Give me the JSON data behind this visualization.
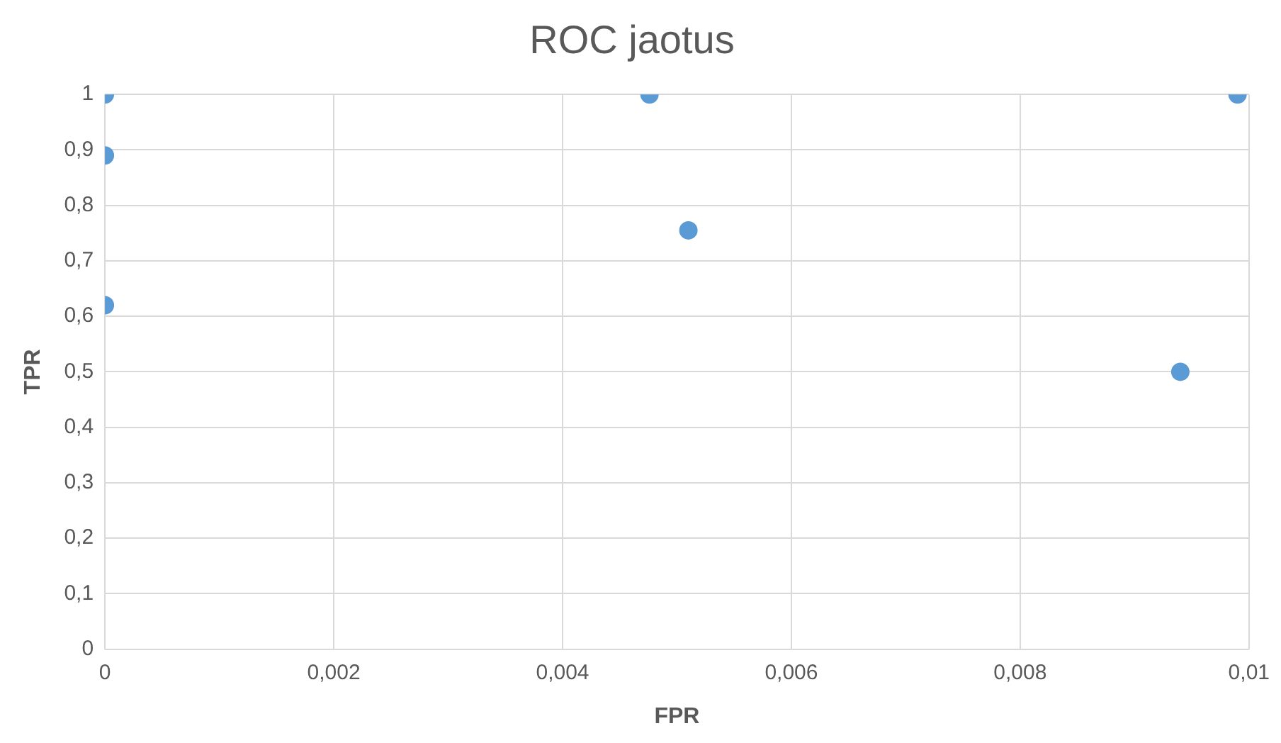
{
  "chart_data": {
    "type": "scatter",
    "title": "ROC jaotus",
    "xlabel": "FPR",
    "ylabel": "TPR",
    "series": [
      {
        "color": "#5b9bd5",
        "x": [
          0,
          0,
          0,
          0.00476,
          0.0051,
          0.0094,
          0.0099
        ],
        "values": [
          1,
          0.89,
          0.62,
          1,
          0.755,
          0.5,
          1
        ]
      }
    ],
    "xlim": [
      0,
      0.01
    ],
    "xticks": [
      0,
      {
        "value": 0.002,
        "label": "0,002"
      },
      {
        "value": 0.004,
        "label": "0,004"
      },
      {
        "value": 0.006,
        "label": "0,006"
      },
      {
        "value": 0.008,
        "label": "0,008"
      },
      {
        "value": 0.01,
        "label": "0,01"
      }
    ],
    "ylim": [
      0,
      1
    ],
    "yticks": [
      0,
      {
        "value": 0.1,
        "label": "0,1"
      },
      {
        "value": 0.2,
        "label": "0,2"
      },
      {
        "value": 0.3,
        "label": "0,3"
      },
      {
        "value": 0.4,
        "label": "0,4"
      },
      {
        "value": 0.5,
        "label": "0,5"
      },
      {
        "value": 0.6,
        "label": "0,6"
      },
      {
        "value": 0.7,
        "label": "0,7"
      },
      {
        "value": 0.8,
        "label": "0,8"
      },
      {
        "value": 0.9,
        "label": "0,9"
      },
      1
    ],
    "grid": true,
    "legend": false,
    "marker": "circle"
  }
}
